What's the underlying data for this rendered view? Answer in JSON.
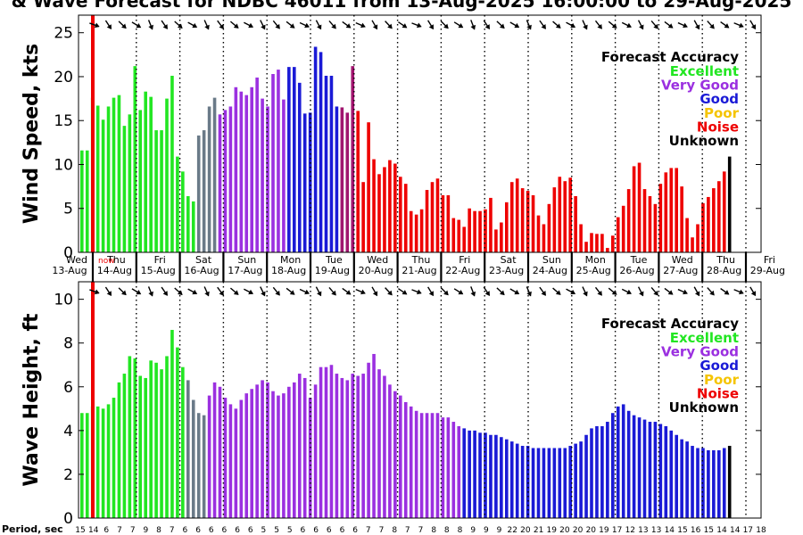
{
  "chart_data": {
    "type": "bar",
    "title": "& Wave Forecast for NDBC 46011 from 13-Aug-2025 16:00:00 to 29-Aug-2025",
    "colors": {
      "excellent": "#22e622",
      "very_good": "#9b30e0",
      "good": "#1a1ad6",
      "poor": "#f5c400",
      "noise": "#ee0000",
      "unknown": "#000000",
      "gray": "#6a7a88",
      "maroon": "#a0146e",
      "now": "#ee0000"
    },
    "legend": {
      "title": "Forecast Accuracy",
      "items": [
        {
          "label": "Excellent",
          "color_key": "excellent"
        },
        {
          "label": "Very Good",
          "color_key": "very_good"
        },
        {
          "label": "Good",
          "color_key": "good"
        },
        {
          "label": "Poor",
          "color_key": "poor"
        },
        {
          "label": "Noise",
          "color_key": "noise"
        },
        {
          "label": "Unknown",
          "color_key": "unknown"
        }
      ],
      "placement": "top-right"
    },
    "now_label": "now",
    "days": [
      {
        "dow": "Wed",
        "date": "13-Aug"
      },
      {
        "dow": "Thu",
        "date": "14-Aug"
      },
      {
        "dow": "Fri",
        "date": "15-Aug"
      },
      {
        "dow": "Sat",
        "date": "16-Aug"
      },
      {
        "dow": "Sun",
        "date": "17-Aug"
      },
      {
        "dow": "Mon",
        "date": "18-Aug"
      },
      {
        "dow": "Tue",
        "date": "19-Aug"
      },
      {
        "dow": "Wed",
        "date": "20-Aug"
      },
      {
        "dow": "Thu",
        "date": "21-Aug"
      },
      {
        "dow": "Fri",
        "date": "22-Aug"
      },
      {
        "dow": "Sat",
        "date": "23-Aug"
      },
      {
        "dow": "Sun",
        "date": "24-Aug"
      },
      {
        "dow": "Mon",
        "date": "25-Aug"
      },
      {
        "dow": "Tue",
        "date": "26-Aug"
      },
      {
        "dow": "Wed",
        "date": "27-Aug"
      },
      {
        "dow": "Thu",
        "date": "28-Aug"
      },
      {
        "dow": "Fri",
        "date": "29-Aug"
      }
    ],
    "wind": {
      "ylabel": "Wind Speed, kts",
      "ylim": [
        0,
        27
      ],
      "yticks": [
        0,
        5,
        10,
        15,
        20,
        25
      ],
      "values": [
        11.6,
        11.6,
        17.6,
        16.7,
        15.1,
        16.6,
        17.6,
        17.9,
        14.4,
        15.7,
        21.2,
        16.2,
        18.3,
        17.7,
        13.9,
        13.9,
        17.5,
        20.1,
        10.9,
        9.2,
        6.4,
        5.8,
        13.3,
        13.9,
        16.6,
        17.6,
        15.7,
        16.2,
        16.6,
        18.8,
        18.3,
        17.9,
        18.8,
        19.9,
        17.5,
        16.6,
        20.3,
        20.8,
        17.4,
        21.1,
        21.1,
        19.3,
        15.8,
        15.9,
        23.4,
        22.8,
        20.1,
        20.1,
        16.6,
        16.5,
        15.9,
        21.2,
        16.1,
        8.0,
        14.8,
        10.6,
        8.9,
        9.7,
        10.5,
        10.1,
        8.6,
        7.8,
        4.7,
        4.3,
        4.9,
        7.1,
        8.0,
        8.4,
        6.5,
        6.5,
        3.9,
        3.7,
        2.9,
        5.0,
        4.7,
        4.7,
        4.9,
        6.2,
        2.6,
        3.4,
        5.7,
        8.0,
        8.4,
        7.3,
        7.0,
        6.5,
        4.2,
        3.2,
        5.5,
        7.4,
        8.6,
        8.1,
        8.5,
        6.4,
        3.2,
        1.2,
        2.2,
        2.1,
        2.1,
        0.5,
        1.9,
        4.0,
        5.3,
        7.2,
        9.8,
        10.2,
        7.2,
        6.4,
        5.5,
        7.8,
        9.1,
        9.6,
        9.6,
        7.5,
        3.9,
        1.7,
        3.2,
        5.6,
        6.3,
        7.3,
        8.1,
        9.2,
        10.9
      ],
      "colors": [
        "excellent",
        "excellent",
        "excellent",
        "excellent",
        "excellent",
        "excellent",
        "excellent",
        "excellent",
        "excellent",
        "excellent",
        "excellent",
        "excellent",
        "excellent",
        "excellent",
        "excellent",
        "excellent",
        "excellent",
        "excellent",
        "excellent",
        "excellent",
        "excellent",
        "excellent",
        "gray",
        "gray",
        "gray",
        "gray",
        "very_good",
        "very_good",
        "very_good",
        "very_good",
        "very_good",
        "very_good",
        "very_good",
        "very_good",
        "very_good",
        "very_good",
        "very_good",
        "very_good",
        "very_good",
        "good",
        "good",
        "good",
        "good",
        "good",
        "good",
        "good",
        "good",
        "good",
        "good",
        "maroon",
        "maroon",
        "maroon",
        "noise",
        "noise",
        "noise",
        "noise",
        "noise",
        "noise",
        "noise",
        "noise",
        "noise",
        "noise",
        "noise",
        "noise",
        "noise",
        "noise",
        "noise",
        "noise",
        "noise",
        "noise",
        "noise",
        "noise",
        "noise",
        "noise",
        "noise",
        "noise",
        "noise",
        "noise",
        "noise",
        "noise",
        "noise",
        "noise",
        "noise",
        "noise",
        "noise",
        "noise",
        "noise",
        "noise",
        "noise",
        "noise",
        "noise",
        "noise",
        "noise",
        "noise",
        "noise",
        "noise",
        "noise",
        "noise",
        "noise",
        "noise",
        "noise",
        "noise",
        "noise",
        "noise",
        "noise",
        "noise",
        "noise",
        "noise",
        "noise",
        "noise",
        "noise",
        "noise",
        "noise",
        "noise",
        "noise",
        "noise",
        "noise",
        "noise",
        "noise",
        "noise",
        "noise",
        "noise"
      ]
    },
    "wave": {
      "ylabel": "Wave Height, ft",
      "ylim": [
        0,
        10.8
      ],
      "yticks": [
        0,
        2,
        4,
        6,
        8,
        10
      ],
      "values": [
        4.8,
        4.8,
        5.1,
        5.1,
        5.0,
        5.2,
        5.5,
        6.2,
        6.6,
        7.4,
        7.3,
        6.5,
        6.4,
        7.2,
        7.1,
        6.8,
        7.4,
        8.6,
        7.8,
        6.9,
        6.3,
        5.4,
        4.8,
        4.7,
        5.6,
        6.2,
        6.0,
        5.5,
        5.2,
        5.0,
        5.4,
        5.7,
        5.9,
        6.1,
        6.3,
        6.2,
        5.8,
        5.6,
        5.7,
        6.0,
        6.2,
        6.6,
        6.4,
        5.5,
        6.1,
        6.9,
        6.9,
        7.0,
        6.6,
        6.4,
        6.3,
        6.6,
        6.5,
        6.6,
        7.1,
        7.5,
        6.8,
        6.5,
        6.1,
        5.8,
        5.6,
        5.3,
        5.1,
        4.9,
        4.8,
        4.8,
        4.8,
        4.8,
        4.6,
        4.6,
        4.4,
        4.2,
        4.1,
        4.0,
        4.0,
        3.9,
        3.9,
        3.8,
        3.8,
        3.7,
        3.6,
        3.5,
        3.4,
        3.3,
        3.3,
        3.2,
        3.2,
        3.2,
        3.2,
        3.2,
        3.2,
        3.2,
        3.3,
        3.4,
        3.5,
        3.8,
        4.1,
        4.2,
        4.2,
        4.4,
        4.8,
        5.1,
        5.2,
        4.9,
        4.7,
        4.6,
        4.5,
        4.4,
        4.4,
        4.3,
        4.2,
        4.0,
        3.8,
        3.6,
        3.5,
        3.3,
        3.2,
        3.2,
        3.1,
        3.1,
        3.1,
        3.2,
        3.3
      ],
      "colors": [
        "excellent",
        "excellent",
        "excellent",
        "excellent",
        "excellent",
        "excellent",
        "excellent",
        "excellent",
        "excellent",
        "excellent",
        "excellent",
        "excellent",
        "excellent",
        "excellent",
        "excellent",
        "excellent",
        "excellent",
        "excellent",
        "excellent",
        "excellent",
        "gray",
        "gray",
        "gray",
        "gray",
        "very_good",
        "very_good",
        "very_good",
        "very_good",
        "very_good",
        "very_good",
        "very_good",
        "very_good",
        "very_good",
        "very_good",
        "very_good",
        "very_good",
        "very_good",
        "very_good",
        "very_good",
        "very_good",
        "very_good",
        "very_good",
        "very_good",
        "very_good",
        "very_good",
        "very_good",
        "very_good",
        "very_good",
        "very_good",
        "very_good",
        "very_good",
        "very_good",
        "very_good",
        "very_good",
        "very_good",
        "very_good",
        "very_good",
        "very_good",
        "very_good",
        "very_good",
        "very_good",
        "very_good",
        "very_good",
        "very_good",
        "very_good",
        "very_good",
        "very_good",
        "very_good",
        "very_good",
        "very_good",
        "very_good",
        "very_good",
        "good",
        "good",
        "good",
        "good",
        "good",
        "good",
        "good",
        "good",
        "good",
        "good",
        "good",
        "good",
        "good",
        "good",
        "good",
        "good",
        "good",
        "good",
        "good",
        "good",
        "good",
        "good",
        "good",
        "good",
        "good",
        "good",
        "good",
        "good",
        "good",
        "good",
        "good",
        "good",
        "good",
        "good",
        "good",
        "good",
        "good",
        "good",
        "good",
        "good",
        "good",
        "good",
        "good",
        "good",
        "good",
        "good",
        "good",
        "good",
        "good",
        "good"
      ]
    },
    "period": {
      "label": "Period, sec",
      "ticks": [
        "15",
        "14",
        "6",
        "7",
        "7",
        "9",
        "8",
        "7",
        "6",
        "6",
        "6",
        "6",
        "6",
        "6",
        "5",
        "5",
        "5",
        "6",
        "6",
        "6",
        "6",
        "6",
        "7",
        "7",
        "8",
        "7",
        "7",
        "8",
        "8",
        "8",
        "9",
        "9",
        "9",
        "22",
        "20",
        "21",
        "19",
        "20",
        "20",
        "20",
        "19",
        "17",
        "12",
        "13",
        "13",
        "14",
        "15",
        "16",
        "15",
        "14",
        "14",
        "17",
        "18"
      ]
    }
  }
}
